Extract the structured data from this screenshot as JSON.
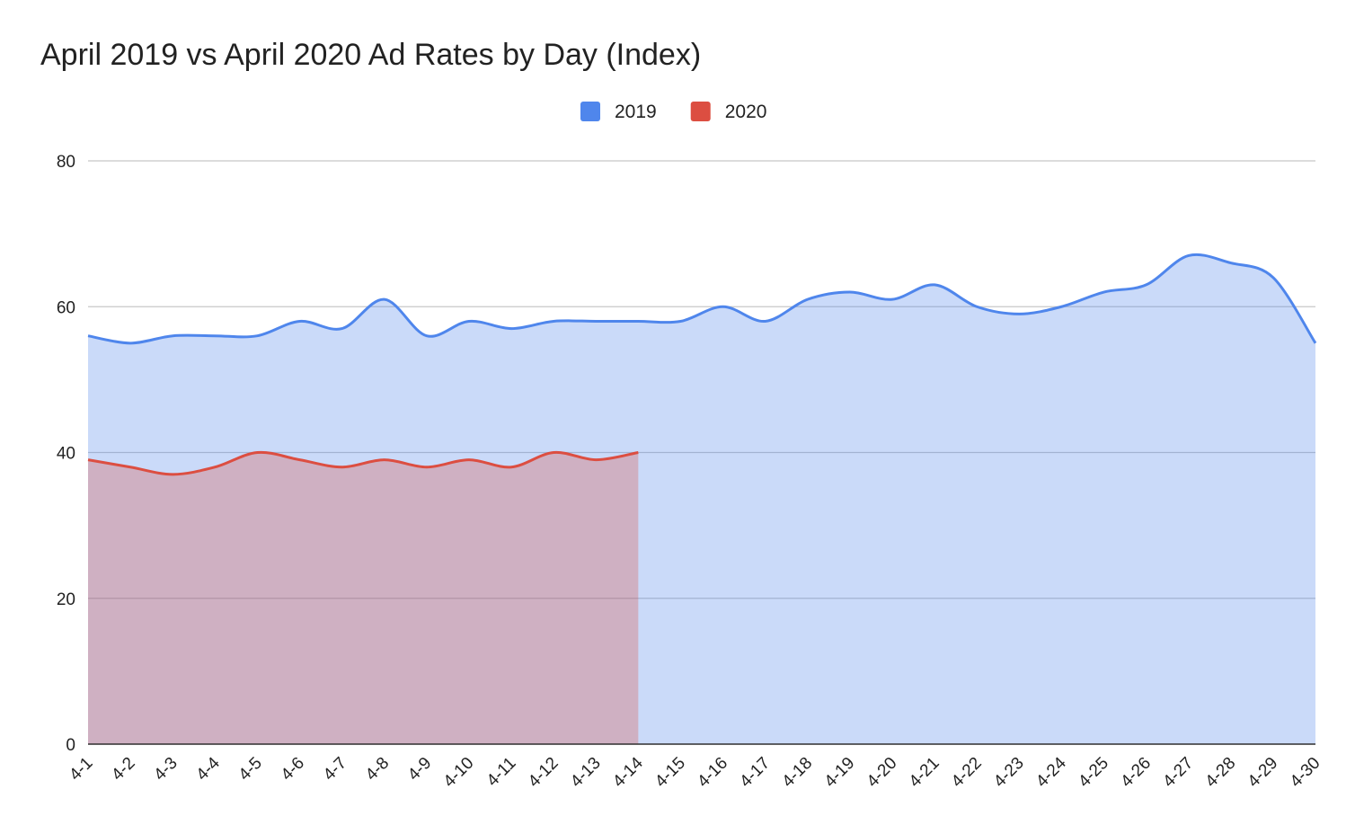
{
  "chart_data": {
    "type": "area",
    "title": "April 2019 vs April 2020 Ad Rates by Day (Index)",
    "categories": [
      "4-1",
      "4-2",
      "4-3",
      "4-4",
      "4-5",
      "4-6",
      "4-7",
      "4-8",
      "4-9",
      "4-10",
      "4-11",
      "4-12",
      "4-13",
      "4-14",
      "4-15",
      "4-16",
      "4-17",
      "4-18",
      "4-19",
      "4-20",
      "4-21",
      "4-22",
      "4-23",
      "4-24",
      "4-25",
      "4-26",
      "4-27",
      "4-28",
      "4-29",
      "4-30"
    ],
    "series": [
      {
        "name": "2019",
        "color": "#4f86ec",
        "values": [
          56,
          55,
          56,
          56,
          56,
          58,
          57,
          61,
          56,
          58,
          57,
          58,
          58,
          58,
          58,
          60,
          58,
          61,
          62,
          61,
          63,
          60,
          59,
          60,
          62,
          63,
          67,
          66,
          64,
          55
        ]
      },
      {
        "name": "2020",
        "color": "#dc4e41",
        "values": [
          39,
          38,
          37,
          38,
          40,
          39,
          38,
          39,
          38,
          39,
          38,
          40,
          39,
          40,
          null,
          null,
          null,
          null,
          null,
          null,
          null,
          null,
          null,
          null,
          null,
          null,
          null,
          null,
          null,
          null
        ]
      }
    ],
    "ylim": [
      0,
      80
    ],
    "yticks": [
      0,
      20,
      40,
      60,
      80
    ],
    "grid": true,
    "legend": "top",
    "smooth": true
  }
}
